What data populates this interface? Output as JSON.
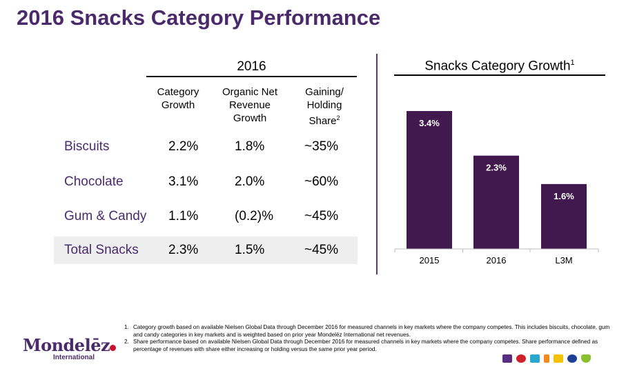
{
  "title": "2016 Snacks Category Performance",
  "table": {
    "year_header": "2016",
    "columns": [
      [
        "Category",
        "Growth"
      ],
      [
        "Organic Net",
        "Revenue",
        "Growth"
      ],
      [
        "Gaining/",
        "Holding",
        "Share"
      ]
    ],
    "share_footnote_ref": "2",
    "rows": [
      {
        "label": "Biscuits",
        "category_growth": "2.2%",
        "onr_growth": "1.8%",
        "share": "~35%"
      },
      {
        "label": "Chocolate",
        "category_growth": "3.1%",
        "onr_growth": "2.0%",
        "share": "~60%"
      },
      {
        "label": "Gum & Candy",
        "category_growth": "1.1%",
        "onr_growth": "(0.2)%",
        "share": "~45%"
      },
      {
        "label": "Total Snacks",
        "category_growth": "2.3%",
        "onr_growth": "1.5%",
        "share": "~45%"
      }
    ]
  },
  "chart_data": {
    "type": "bar",
    "title": "Snacks Category Growth",
    "title_footnote_ref": "1",
    "categories": [
      "2015",
      "2016",
      "L3M"
    ],
    "values": [
      3.4,
      2.3,
      1.6
    ],
    "data_labels": [
      "3.4%",
      "2.3%",
      "1.6%"
    ],
    "ylim": [
      0,
      3.4
    ],
    "xlabel": "",
    "ylabel": "",
    "grid": false,
    "bar_color": "#42194f"
  },
  "footnotes": [
    {
      "num": "1.",
      "text": "Category growth based on available Nielsen Global Data through December 2016 for measured channels in key markets where the company competes.  This includes biscuits, chocolate, gum and candy categories in key markets and is weighted based on prior year Mondelēz International net revenues."
    },
    {
      "num": "2.",
      "text": "Share performance based on available Nielsen Global Data through December 2016 for measured channels in key markets where the company competes.  Share performance defined as percentage of revenues with share either increasing or holding versus the same prior year period."
    }
  ],
  "logo": {
    "main": "Mondelēz",
    "sub": "International"
  },
  "colors": {
    "brand_purple": "#4b2a6b",
    "bar": "#42194f",
    "total_row_bg": "#eeeeee"
  }
}
